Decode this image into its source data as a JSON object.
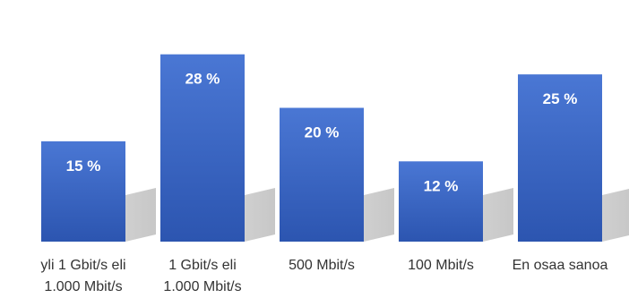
{
  "chart_data": {
    "type": "bar",
    "categories": [
      [
        "yli 1 Gbit/s eli",
        "1.000 Mbit/s"
      ],
      [
        "1 Gbit/s eli",
        "1.000 Mbit/s"
      ],
      [
        "500 Mbit/s"
      ],
      [
        "100 Mbit/s"
      ],
      [
        "En osaa sanoa"
      ]
    ],
    "values": [
      15,
      28,
      20,
      12,
      25
    ],
    "data_labels": [
      "15 %",
      "28 %",
      "20 %",
      "12 %",
      "25 %"
    ],
    "ylim": [
      0,
      30
    ],
    "grid": false,
    "legend": "none",
    "colors": {
      "bar_top": "#4a77d4",
      "bar_bottom": "#2c55b0",
      "shadow": "#c9c9c9",
      "label_text": "#ffffff",
      "axis_text": "#333333"
    }
  }
}
